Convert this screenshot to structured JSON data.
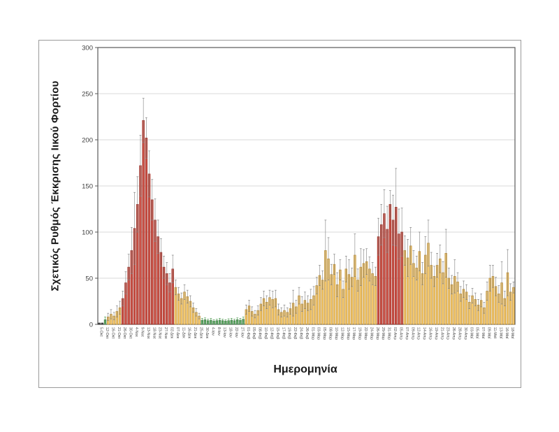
{
  "chart_data": {
    "type": "bar",
    "title": "",
    "xlabel": "Ημερομηνία",
    "ylabel": "Σχετικός Ρυθμός Έκκρισης Ιικού Φορτίου",
    "ylim": [
      0,
      300
    ],
    "yticks": [
      0,
      50,
      100,
      150,
      200,
      250,
      300
    ],
    "grid": true,
    "legend": "none",
    "bar_color_legend": {
      "r": "red (high shedding period)",
      "o": "orange (moderate shedding)",
      "g": "green (low shedding)",
      "d": "dark (baseline)"
    },
    "palette": {
      "r_fill": "#CD5449",
      "r_stroke": "#9B291F",
      "o_fill": "#F6CA6F",
      "o_stroke": "#BD8C2F",
      "g_fill": "#69AC70",
      "g_stroke": "#3E7C45",
      "d_fill": "#4D4D4D",
      "d_stroke": "#333333",
      "whisker": "#808080",
      "whisker_green": "#4E9A50",
      "grid": "#D9D9D9",
      "axis": "#595959",
      "tick_text": "#404040"
    },
    "tick_labels": [
      "5-Οκτ",
      "12-Οκτ",
      "16-Οκτ",
      "21-Οκτ",
      "26-Οκτ",
      "30-Οκτ",
      "4-Νοε",
      "9-Νοε",
      "13-Νοε",
      "18-Νοε",
      "23-Νοε",
      "27-Νοε",
      "02-Δεκ",
      "07-Δεκ",
      "11-Δεκ",
      "16-Δεκ",
      "21-Δεκ",
      "25-Δεκ",
      "30-Δεκ",
      "4-Ιαν",
      "8-Ιαν",
      "13-Ιαν",
      "18-Ιαν",
      "22-Ιαν",
      "27-Ιαν",
      "01-Φεβ",
      "05-Φεβ",
      "08-Φεβ",
      "10-Φεβ",
      "12-Φεβ",
      "15-Φεβ",
      "17-Φεβ",
      "19-Φεβ",
      "22-Φεβ",
      "24-Φεβ",
      "26-Φεβ",
      "01-Μαρ",
      "03-Μαρ",
      "05-Μαρ",
      "08-Μαρ",
      "10-Μαρ",
      "12-Μαρ",
      "15-Μαρ",
      "17-Μαρ",
      "19-Μαρ",
      "22-Μαρ",
      "24-Μαρ",
      "26-Μαρ",
      "29-Μαρ",
      "31-Μαρ",
      "02-Απρ",
      "05-Απρ",
      "07-Απρ",
      "09-Απρ",
      "12-Απρ",
      "14-Απρ",
      "16-Απρ",
      "19-Απρ",
      "21-Απρ",
      "23-Απρ",
      "26-Απρ",
      "28-Απρ",
      "30-Απρ",
      "03-Μαϊ",
      "05-Μαϊ",
      "07-Μαϊ",
      "09-Μαϊ",
      "11-Μαϊ",
      "13-Μαϊ",
      "16-Μαϊ",
      "18-Μαϊ"
    ],
    "label_every_n_bars": 2,
    "values": [
      1.5,
      1.5,
      5,
      8,
      11,
      9,
      14,
      18,
      28,
      45,
      62,
      80,
      104,
      130,
      172,
      221,
      202,
      163,
      135,
      113,
      95,
      78,
      62,
      55,
      45,
      60,
      40,
      33,
      28,
      35,
      30,
      25,
      18,
      13,
      9,
      4.5,
      5,
      4,
      4.5,
      3.5,
      4,
      4.5,
      4,
      3.5,
      4,
      4.5,
      4,
      5,
      4.5,
      5.5,
      16,
      20,
      14,
      11,
      15,
      22,
      28,
      24,
      29,
      27,
      28,
      16,
      13,
      15,
      13,
      17,
      23,
      19,
      31,
      22,
      26,
      23,
      27,
      31,
      42,
      53,
      48,
      80,
      71,
      54,
      65,
      43,
      59,
      38,
      60,
      54,
      51,
      75,
      48,
      62,
      66,
      68,
      60,
      55,
      52,
      95,
      108,
      120,
      103,
      130,
      113,
      127,
      98,
      100,
      80,
      72,
      85,
      66,
      61,
      79,
      55,
      75,
      88,
      64,
      52,
      64,
      71,
      56,
      77,
      50,
      43,
      52,
      46,
      33,
      38,
      35,
      24,
      31,
      27,
      21,
      26,
      18,
      36,
      50,
      52,
      41,
      33,
      45,
      28,
      56,
      35,
      40
    ],
    "errors": [
      0,
      0,
      3,
      4,
      5,
      4,
      6,
      7,
      8,
      12,
      14,
      25,
      39,
      30,
      33,
      24,
      22,
      25,
      22,
      23,
      18,
      15,
      12,
      12,
      10,
      15,
      8,
      7,
      6,
      8,
      7,
      6,
      5,
      4,
      3,
      2,
      2,
      1.5,
      2,
      1.5,
      1.5,
      2,
      1.5,
      1.5,
      2,
      2,
      1.5,
      2,
      2,
      2.5,
      5,
      6,
      5,
      4,
      5,
      7,
      8,
      7,
      8,
      9,
      9,
      6,
      5,
      6,
      5,
      6,
      14,
      7,
      9,
      8,
      9,
      8,
      11,
      10,
      9,
      11,
      10,
      33,
      23,
      11,
      11,
      13,
      11,
      9,
      14,
      16,
      10,
      23,
      12,
      20,
      15,
      14,
      13,
      12,
      10,
      20,
      22,
      26,
      25,
      15,
      27,
      42,
      27,
      26,
      16,
      20,
      20,
      14,
      13,
      21,
      12,
      20,
      25,
      14,
      11,
      13,
      15,
      12,
      26,
      11,
      10,
      18,
      10,
      8,
      9,
      8,
      7,
      8,
      7,
      6,
      7,
      6,
      10,
      14,
      12,
      10,
      9,
      23,
      8,
      25,
      9,
      6
    ],
    "colors_seq": "ddgooooorrrrrrrrrrrrrrrrrrooooooooogggggggggggggggooooooooooooooooooooooooooooooooooooooooooooorrrrrrrrroooooooooooooooooooooooooooooooooooooo"
  }
}
